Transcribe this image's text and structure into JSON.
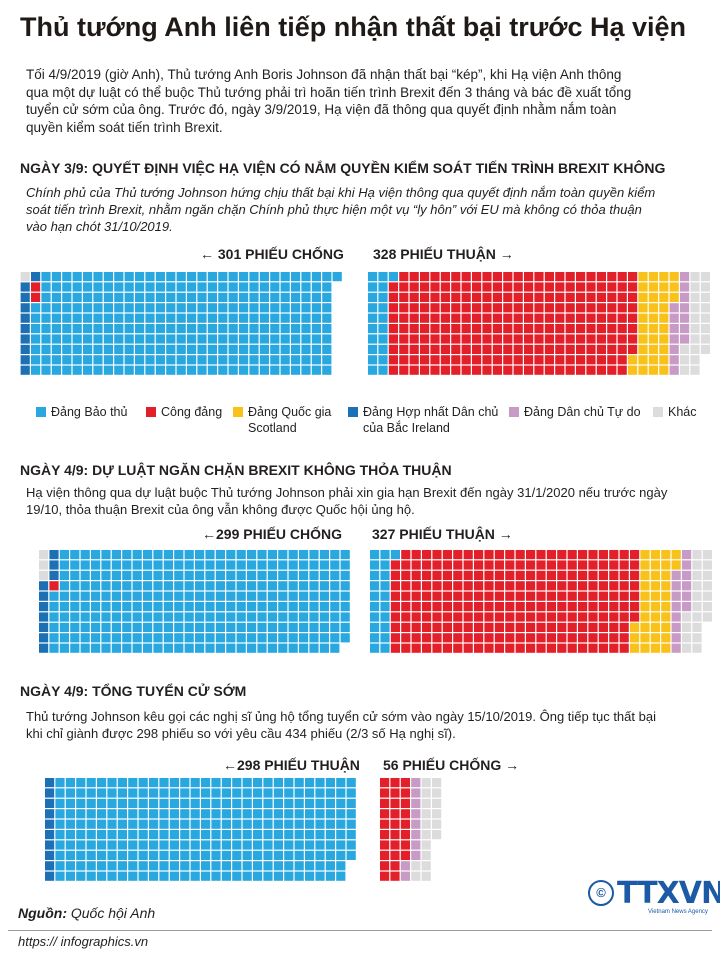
{
  "title": "Thủ tướng Anh liên tiếp nhận thất bại trước Hạ viện",
  "intro": "Tối 4/9/2019 (giờ Anh), Thủ tướng Anh Boris Johnson đã nhận thất bại “kép”, khi Hạ viện Anh thông qua một dự luật có thể buộc Thủ tướng phải trì hoãn tiến trình Brexit đến 3 tháng và bác đề xuất tổng tuyển cử sớm của ông. Trước đó, ngày 3/9/2019, Hạ viện đã thông qua quyết định nhằm nắm toàn quyền kiểm soát tiến trình Brexit.",
  "sections": [
    {
      "heading": "NGÀY 3/9: QUYẾT ĐỊNH VIỆC HẠ VIỆN CÓ NẮM QUYỀN KIỂM SOÁT TIẾN TRÌNH BREXIT KHÔNG",
      "description": "Chính phủ của Thủ tướng Johnson hứng chịu thất bại khi Hạ viện thông qua quyết định nắm toàn quyền kiểm soát tiến trình Brexit, nhằm ngăn chặn Chính phủ thực hiện một vụ “ly hôn” với EU mà không có thỏa thuận vào hạn chót 31/10/2019.",
      "left_label": "←  301 PHIẾU CHỐNG",
      "right_label": "328 PHIẾU THUẬN  →"
    },
    {
      "heading": "NGÀY 4/9: DỰ LUẬT NGĂN CHẶN BREXIT KHÔNG THỎA THUẬN",
      "description": "Hạ viện thông qua dự luật buộc Thủ tướng Johnson phải xin gia hạn Brexit đến ngày 31/1/2020 nếu trước ngày 19/10, thỏa thuận Brexit của ông vẫn không được Quốc hội ủng hộ.",
      "left_label": "←299 PHIẾU CHỐNG",
      "right_label": "327 PHIẾU THUẬN  →"
    },
    {
      "heading": "NGÀY 4/9: TỔNG TUYỂN CỬ SỚM",
      "description": "Thủ tướng Johnson kêu gọi các nghị sĩ ủng hộ tổng tuyển cử sớm vào ngày 15/10/2019. Ông tiếp tục thất bại khi chỉ giành được 298 phiếu so với yêu cầu 434 phiếu (2/3 số Hạ nghị sĩ).",
      "left_label": "←298 PHIẾU THUẬN",
      "right_label": "56 PHIẾU CHỐNG →"
    }
  ],
  "legend": [
    {
      "label": "Đảng Bảo thủ",
      "color": "#29a8e0"
    },
    {
      "label": "Công đảng",
      "color": "#e3202a"
    },
    {
      "label": "Đảng Quốc gia Scotland",
      "color": "#f8c21a"
    },
    {
      "label": "Đảng Hợp nhất Dân chủ của Bắc Ireland",
      "color": "#1e70b5"
    },
    {
      "label": "Đảng Dân chủ Tự do",
      "color": "#c79bc6"
    },
    {
      "label": "Khác",
      "color": "#dcdcdc"
    }
  ],
  "chart_data": [
    {
      "type": "waffle",
      "title": "NGÀY 3/9: QUYẾT ĐỊNH VIỆC HẠ VIỆN CÓ NẮM QUYỀN KIỂM SOÁT TIẾN TRÌNH BREXIT KHÔNG",
      "groups": [
        {
          "name": "301 PHIẾU CHỐNG",
          "total": 301,
          "composition": {
            "Đảng Bảo thủ": 288,
            "Công đảng": 2,
            "Đảng Hợp nhất Dân chủ của Bắc Ireland": 10,
            "Khác": 1
          }
        },
        {
          "name": "328 PHIẾU THUẬN",
          "total": 328,
          "composition": {
            "Đảng Bảo thủ": 21,
            "Công đảng": 237,
            "Đảng Quốc gia Scotland": 35,
            "Đảng Dân chủ Tự do": 14,
            "Khác": 21
          }
        }
      ]
    },
    {
      "type": "waffle",
      "title": "NGÀY 4/9: DỰ LUẬT NGĂN CHẶN BREXIT KHÔNG THỎA THUẬN",
      "groups": [
        {
          "name": "299 PHIẾU CHỐNG",
          "total": 299,
          "composition": {
            "Đảng Bảo thủ": 285,
            "Công đảng": 1,
            "Đảng Hợp nhất Dân chủ của Bắc Ireland": 10,
            "Khác": 3
          }
        },
        {
          "name": "327 PHIẾU THUẬN",
          "total": 327,
          "composition": {
            "Đảng Bảo thủ": 21,
            "Công đảng": 236,
            "Đảng Quốc gia Scotland": 35,
            "Đảng Dân chủ Tự do": 14,
            "Khác": 21
          }
        }
      ]
    },
    {
      "type": "waffle",
      "title": "NGÀY 4/9: TỔNG TUYỂN CỬ SỚM",
      "groups": [
        {
          "name": "298 PHIẾU THUẬN",
          "total": 298,
          "composition": {
            "Đảng Bảo thủ": 288,
            "Đảng Hợp nhất Dân chủ của Bắc Ireland": 10
          }
        },
        {
          "name": "56 PHIẾU CHỐNG",
          "total": 56,
          "composition": {
            "Công đảng": 28,
            "Đảng Dân chủ Tự do": 10,
            "Khác": 18
          }
        }
      ]
    }
  ],
  "source_label": "Nguồn:",
  "source_text": "Quốc hội Anh",
  "website": "https:// infographics.vn",
  "logo": {
    "mark": "©",
    "text": "TTXVN",
    "subtitle": "Vietnam News Agency"
  }
}
